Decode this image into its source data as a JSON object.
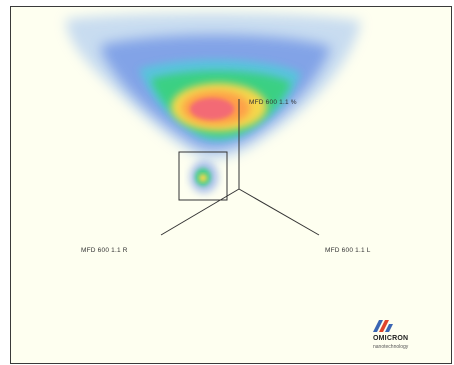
{
  "labels": {
    "top": "MFD 600 1.1 %",
    "left": "MFD 600 1.1 R",
    "right": "MFD 600 1.1 L"
  },
  "logo": {
    "name": "OMICRON",
    "subtitle": "nanotechnology",
    "colors": [
      "#3b66b3",
      "#e0432a"
    ]
  },
  "colors": {
    "background": "#fefff0",
    "frame": "#3a3a3a",
    "density_low": "#4a74e0",
    "density_mid": "#39d27a",
    "density_high": "#ffd84a",
    "density_peak": "#f2657a",
    "lines": "#333333"
  }
}
